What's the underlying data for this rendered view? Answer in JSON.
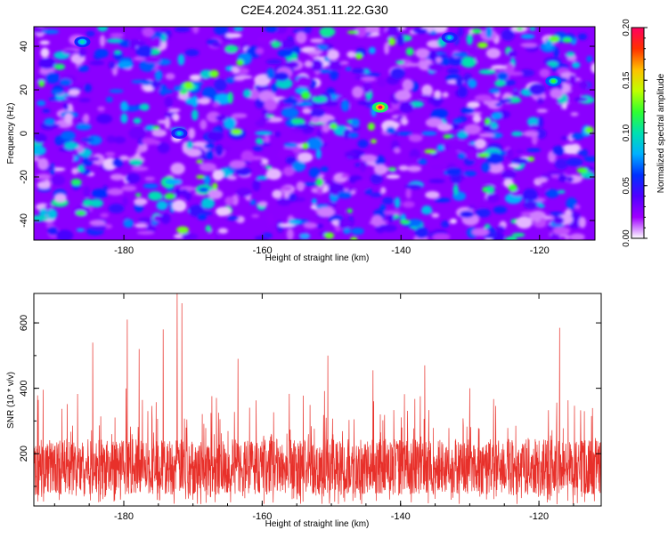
{
  "figure": {
    "title": "C2E4.2024.351.11.22.G30"
  },
  "chart_data": [
    {
      "type": "heatmap",
      "title": "C2E4.2024.351.11.22.G30",
      "xlabel": "Height of straight line (km)",
      "ylabel": "Frequency (Hz)",
      "xlim": [
        -193,
        -112
      ],
      "ylim": [
        -49,
        49
      ],
      "x_ticks": [
        -180,
        -160,
        -140,
        -120
      ],
      "y_ticks": [
        -40,
        -20,
        0,
        20,
        40
      ],
      "colorbar": {
        "label": "Normalized spectral amplitude",
        "range": [
          0.0,
          0.2
        ],
        "ticks": [
          "0.00",
          "0.05",
          "0.10",
          "0.15",
          "0.20"
        ],
        "colors": [
          "#ffffff",
          "#a000ff",
          "#5000ff",
          "#0030ff",
          "#00b0ff",
          "#00e0b0",
          "#30ff30",
          "#c0ff00",
          "#ffc000",
          "#ff3000",
          "#ff0060"
        ]
      },
      "notable_peaks": [
        {
          "x": -143,
          "y": 12,
          "value": 0.2
        },
        {
          "x": -118,
          "y": 24,
          "value": 0.12
        },
        {
          "x": -186,
          "y": 42,
          "value": 0.1
        },
        {
          "x": -172,
          "y": 0,
          "value": 0.09
        },
        {
          "x": -133,
          "y": 44,
          "value": 0.09
        }
      ],
      "grid": false
    },
    {
      "type": "line",
      "xlabel": "Height of straight line (km)",
      "ylabel": "SNR (10 * v/v)",
      "xlim": [
        -193,
        -111
      ],
      "ylim": [
        40,
        690
      ],
      "x_ticks": [
        -180,
        -160,
        -140,
        -120
      ],
      "y_ticks": [
        200,
        400,
        600
      ],
      "series": [
        {
          "color": "#e8302a",
          "baseline": 160,
          "spikes": [
            {
              "x": -184.5,
              "y": 540
            },
            {
              "x": -179.5,
              "y": 610
            },
            {
              "x": -177.8,
              "y": 520
            },
            {
              "x": -174.3,
              "y": 580
            },
            {
              "x": -172.3,
              "y": 690
            },
            {
              "x": -171.6,
              "y": 660
            },
            {
              "x": -163.5,
              "y": 490
            },
            {
              "x": -150.5,
              "y": 500
            },
            {
              "x": -144.0,
              "y": 455
            },
            {
              "x": -136.5,
              "y": 470
            },
            {
              "x": -130.0,
              "y": 400
            },
            {
              "x": -117.0,
              "y": 585
            }
          ]
        }
      ],
      "grid": false
    }
  ]
}
